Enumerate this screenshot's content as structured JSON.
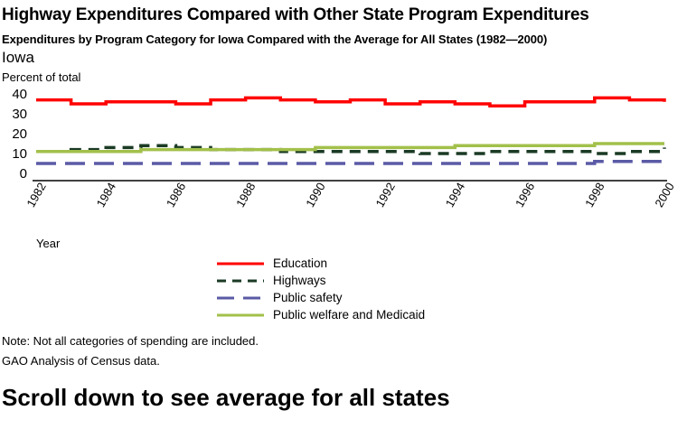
{
  "header": {
    "title": "Highway Expenditures Compared with Other State Program Expenditures",
    "subtitle": "Expenditures by Program Category for Iowa Compared with the Average for All States (1982—2000)",
    "state": "Iowa",
    "ylabel": "Percent of total"
  },
  "chart_data": {
    "type": "line",
    "title": "Iowa",
    "xlabel": "Year",
    "ylabel": "Percent of total",
    "x": [
      1982,
      1983,
      1984,
      1985,
      1986,
      1987,
      1988,
      1989,
      1990,
      1991,
      1992,
      1993,
      1994,
      1995,
      1996,
      1997,
      1998,
      1999,
      2000
    ],
    "xticks": [
      "1982",
      "1984",
      "1986",
      "1988",
      "1990",
      "1992",
      "1994",
      "1996",
      "1998",
      "2000"
    ],
    "yticks": [
      "0",
      "10",
      "20",
      "30",
      "40"
    ],
    "ylim": [
      0,
      40
    ],
    "grid": false,
    "legend_position": "bottom-center",
    "series": [
      {
        "name": "Education",
        "color": "#ff0000",
        "style": "solid",
        "values": [
          37,
          35,
          36,
          36,
          35,
          37,
          38,
          37,
          36,
          37,
          35,
          36,
          35,
          34,
          36,
          36,
          38,
          37,
          36
        ]
      },
      {
        "name": "Highways",
        "color": "#1a3a24",
        "style": "dashed",
        "values": [
          11,
          12,
          13,
          14,
          13,
          12,
          12,
          11,
          11,
          11,
          11,
          10,
          10,
          11,
          11,
          11,
          10,
          11,
          13
        ]
      },
      {
        "name": "Public safety",
        "color": "#5a5aa6",
        "style": "longdash",
        "values": [
          5,
          5,
          5,
          5,
          5,
          5,
          5,
          5,
          5,
          5,
          5,
          5,
          5,
          5,
          5,
          5,
          6,
          6,
          6
        ]
      },
      {
        "name": "Public welfare and Medicaid",
        "color": "#a2c04a",
        "style": "solid",
        "values": [
          11,
          11,
          11,
          12,
          12,
          12,
          12,
          12,
          13,
          13,
          13,
          13,
          14,
          14,
          14,
          14,
          15,
          15,
          15
        ]
      }
    ]
  },
  "legend": [
    {
      "label": "Education",
      "color": "#ff0000"
    },
    {
      "label": "Highways",
      "color": "#1a3a24"
    },
    {
      "label": "Public safety",
      "color": "#5a5aa6"
    },
    {
      "label": "Public welfare and Medicaid",
      "color": "#a2c04a"
    }
  ],
  "footer": {
    "note": "Note: Not all categories of spending are included.",
    "source": "GAO Analysis of Census data.",
    "scroll_hint": "Scroll down to see average for all states"
  }
}
